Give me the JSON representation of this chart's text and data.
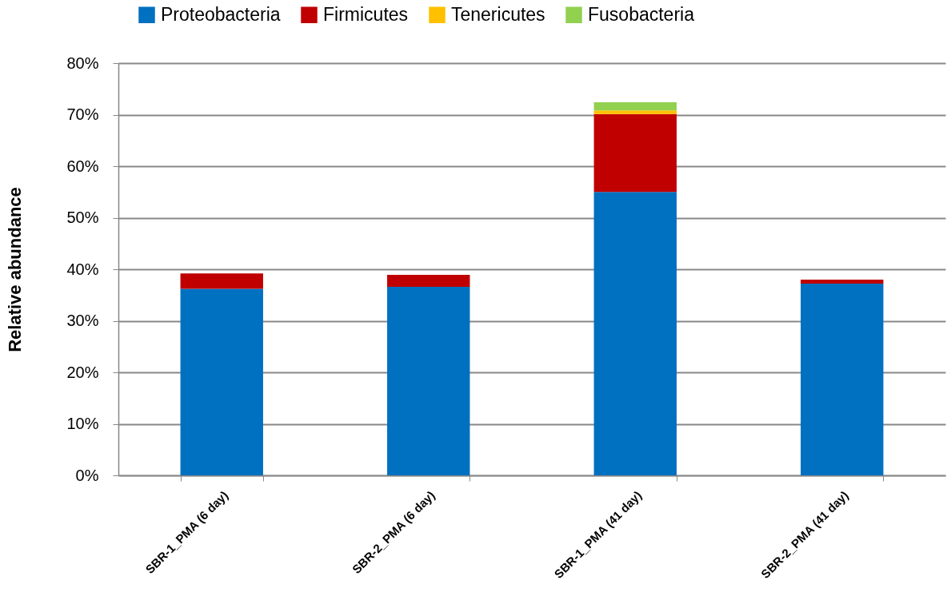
{
  "chart_data": {
    "type": "bar",
    "stacked": true,
    "ylabel": "Relative abundance",
    "categories": [
      "SBR-1_PMA (6 day)",
      "SBR-2_PMA (6 day)",
      "SBR-1_PMA (41 day)",
      "SBR-2_PMA (41 day)"
    ],
    "series": [
      {
        "name": "Proteobacteria",
        "color": "#0070c0",
        "values": [
          36.2,
          36.6,
          55.0,
          37.2
        ]
      },
      {
        "name": "Firmicutes",
        "color": "#c00000",
        "values": [
          3.0,
          2.3,
          15.1,
          0.8
        ]
      },
      {
        "name": "Tenericutes",
        "color": "#ffc000",
        "values": [
          null,
          null,
          0.7,
          null
        ]
      },
      {
        "name": "Fusobacteria",
        "color": "#92d050",
        "values": [
          null,
          null,
          1.6,
          null
        ]
      }
    ],
    "ylim": [
      0,
      80
    ],
    "yticks": [
      {
        "value": 0,
        "label": "0%"
      },
      {
        "value": 10,
        "label": "10%"
      },
      {
        "value": 20,
        "label": "20%"
      },
      {
        "value": 30,
        "label": "30%"
      },
      {
        "value": 40,
        "label": "40%"
      },
      {
        "value": 50,
        "label": "50%"
      },
      {
        "value": 60,
        "label": "60%"
      },
      {
        "value": 70,
        "label": "70%"
      },
      {
        "value": 80,
        "label": "80%"
      }
    ],
    "grid": "y",
    "legend": "top"
  }
}
